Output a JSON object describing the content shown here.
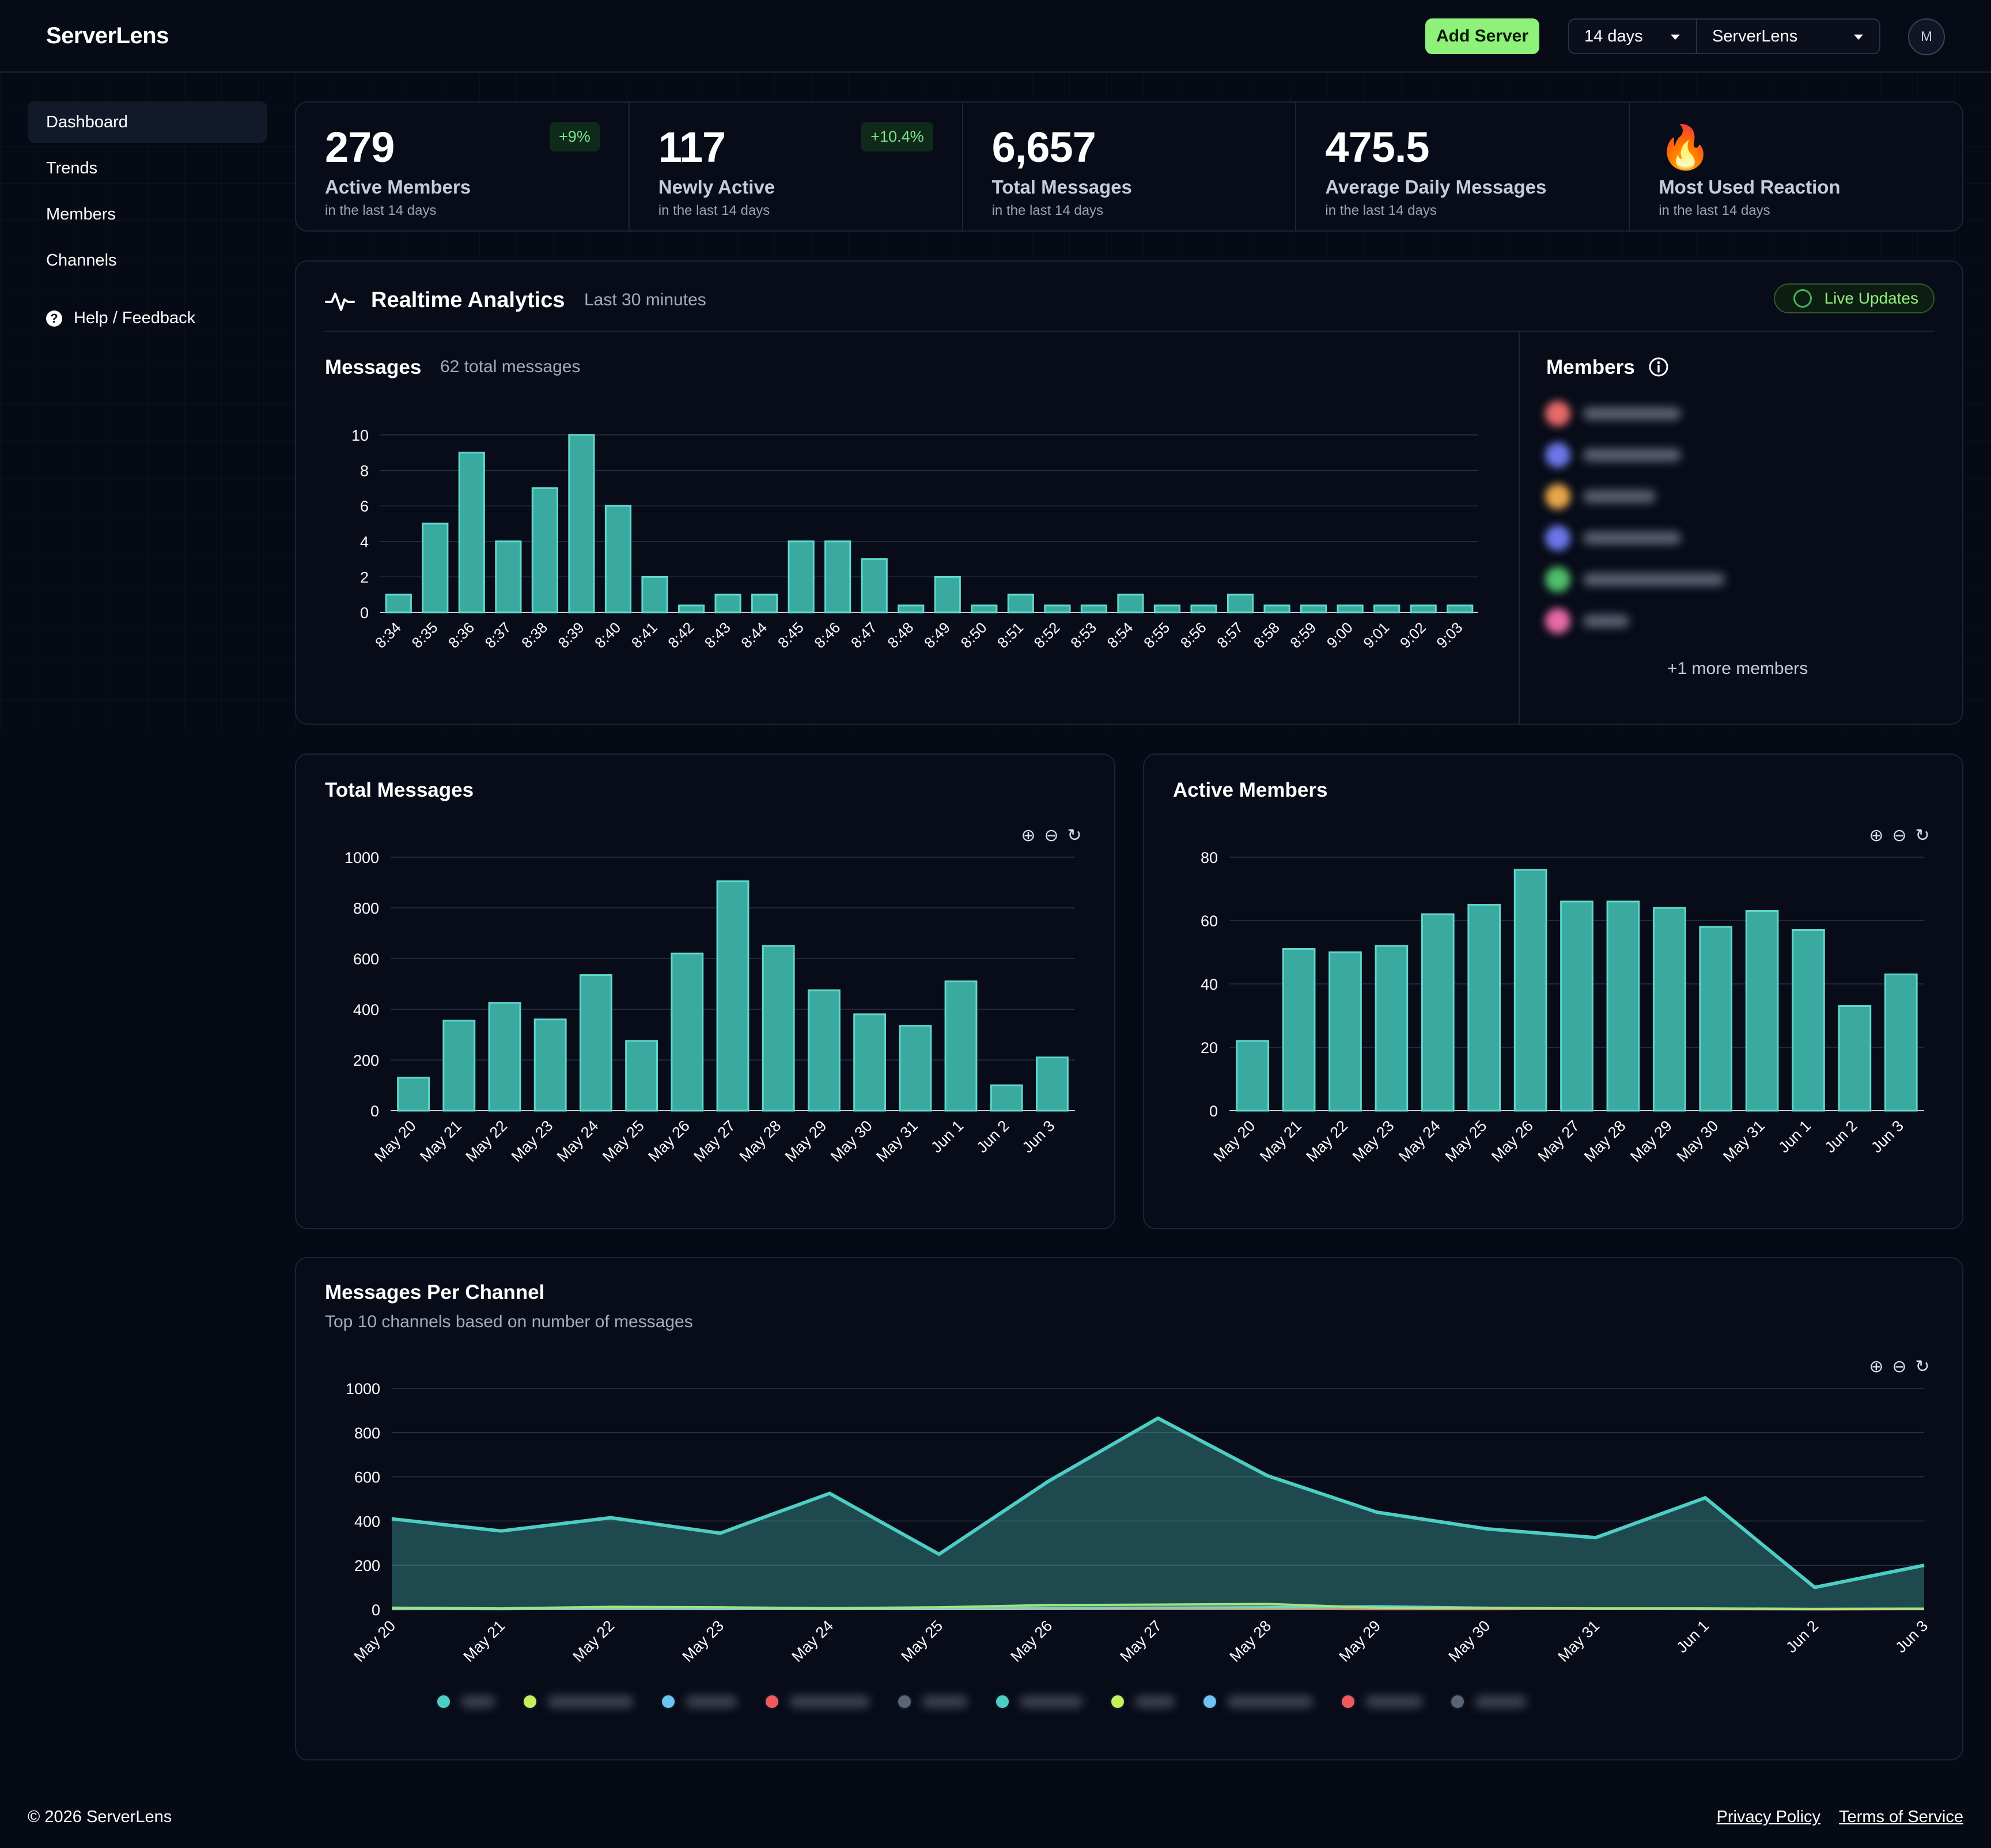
{
  "app": {
    "brand": "ServerLens",
    "avatar_initial": "M"
  },
  "header": {
    "add_server": "Add Server",
    "range": "14 days",
    "server": "ServerLens"
  },
  "sidebar": {
    "items": [
      {
        "label": "Dashboard",
        "active": true
      },
      {
        "label": "Trends"
      },
      {
        "label": "Members"
      },
      {
        "label": "Channels"
      }
    ],
    "help": "Help / Feedback"
  },
  "stats": [
    {
      "value": "279",
      "label": "Active Members",
      "sub": "in the last 14 days",
      "badge": "+9%"
    },
    {
      "value": "117",
      "label": "Newly Active",
      "sub": "in the last 14 days",
      "badge": "+10.4%"
    },
    {
      "value": "6,657",
      "label": "Total Messages",
      "sub": "in the last 14 days"
    },
    {
      "value": "475.5",
      "label": "Average Daily Messages",
      "sub": "in the last 14 days"
    },
    {
      "value": "🔥",
      "label": "Most Used Reaction",
      "sub": "in the last 14 days"
    }
  ],
  "realtime": {
    "title": "Realtime Analytics",
    "subtitle": "Last 30 minutes",
    "live_label": "Live Updates",
    "messages_title": "Messages",
    "messages_sub": "62 total messages",
    "members_title": "Members",
    "more_members": "+1 more members",
    "member_colors": [
      "#e86a6a",
      "#6b77e8",
      "#e8a64a",
      "#6b77e8",
      "#4fbf6a",
      "#e86aa8"
    ]
  },
  "total_messages_title": "Total Messages",
  "active_members_title": "Active Members",
  "channels": {
    "title": "Messages Per Channel",
    "subtitle": "Top 10 channels based on number of messages",
    "legend_colors": [
      "#4ecdc4",
      "#c6f05a",
      "#6cc4f0",
      "#f05a5a",
      "#5a6474",
      "#4ecdc4",
      "#c6f05a",
      "#6cc4f0",
      "#f05a5a",
      "#5a6474"
    ]
  },
  "footer": {
    "copyright": "© 2026 ServerLens",
    "privacy": "Privacy Policy",
    "terms": "Terms of Service"
  },
  "colors": {
    "accent": "#4ecdc4",
    "bar_fill": "#3aa99f",
    "bg": "#060a14"
  },
  "chart_data": [
    {
      "type": "bar",
      "title": "Messages",
      "categories": [
        "8:34",
        "8:35",
        "8:36",
        "8:37",
        "8:38",
        "8:39",
        "8:40",
        "8:41",
        "8:42",
        "8:43",
        "8:44",
        "8:45",
        "8:46",
        "8:47",
        "8:48",
        "8:49",
        "8:50",
        "8:51",
        "8:52",
        "8:53",
        "8:54",
        "8:55",
        "8:56",
        "8:57",
        "8:58",
        "8:59",
        "9:00",
        "9:01",
        "9:02",
        "9:03"
      ],
      "values": [
        1,
        5,
        9,
        4,
        7,
        10,
        6,
        2,
        0,
        1,
        1,
        4,
        4,
        3,
        0,
        2,
        0,
        1,
        0,
        0,
        1,
        0,
        0,
        1,
        0,
        0,
        0,
        0,
        0,
        0
      ],
      "ylim": [
        0,
        10
      ],
      "yticks": [
        0,
        2,
        4,
        6,
        8,
        10
      ],
      "grid": true
    },
    {
      "type": "bar",
      "title": "Total Messages",
      "categories": [
        "May 20",
        "May 21",
        "May 22",
        "May 23",
        "May 24",
        "May 25",
        "May 26",
        "May 27",
        "May 28",
        "May 29",
        "May 30",
        "May 31",
        "Jun 1",
        "Jun 2",
        "Jun 3"
      ],
      "values": [
        130,
        355,
        425,
        360,
        535,
        275,
        620,
        905,
        650,
        475,
        380,
        335,
        510,
        100,
        210
      ],
      "ylim": [
        0,
        1000
      ],
      "yticks": [
        0,
        200,
        400,
        600,
        800,
        1000
      ],
      "grid": true
    },
    {
      "type": "bar",
      "title": "Active Members",
      "categories": [
        "May 20",
        "May 21",
        "May 22",
        "May 23",
        "May 24",
        "May 25",
        "May 26",
        "May 27",
        "May 28",
        "May 29",
        "May 30",
        "May 31",
        "Jun 1",
        "Jun 2",
        "Jun 3"
      ],
      "values": [
        22,
        51,
        50,
        52,
        62,
        65,
        76,
        66,
        66,
        64,
        58,
        63,
        57,
        33,
        43
      ],
      "ylim": [
        0,
        80
      ],
      "yticks": [
        0,
        20,
        40,
        60,
        80
      ],
      "grid": true
    },
    {
      "type": "area",
      "title": "Messages Per Channel",
      "categories": [
        "May 20",
        "May 21",
        "May 22",
        "May 23",
        "May 24",
        "May 25",
        "May 26",
        "May 27",
        "May 28",
        "May 29",
        "May 30",
        "May 31",
        "Jun 1",
        "Jun 2",
        "Jun 3"
      ],
      "series": [
        {
          "color": "#4ecdc4",
          "values": [
            410,
            355,
            415,
            345,
            525,
            250,
            580,
            865,
            605,
            440,
            365,
            325,
            505,
            100,
            200
          ]
        },
        {
          "color": "#c6f05a",
          "values": [
            8,
            5,
            12,
            10,
            6,
            10,
            20,
            22,
            25,
            8,
            6,
            5,
            5,
            3,
            4
          ]
        },
        {
          "color": "#6cc4f0",
          "values": [
            3,
            2,
            4,
            3,
            3,
            4,
            6,
            8,
            10,
            15,
            8,
            4,
            3,
            2,
            3
          ]
        },
        {
          "color": "#f05a5a",
          "values": [
            2,
            3,
            3,
            2,
            4,
            5,
            4,
            3,
            3,
            2,
            2,
            3,
            2,
            1,
            2
          ]
        }
      ],
      "ylim": [
        0,
        1000
      ],
      "yticks": [
        0,
        200,
        400,
        600,
        800,
        1000
      ],
      "grid": true
    }
  ]
}
